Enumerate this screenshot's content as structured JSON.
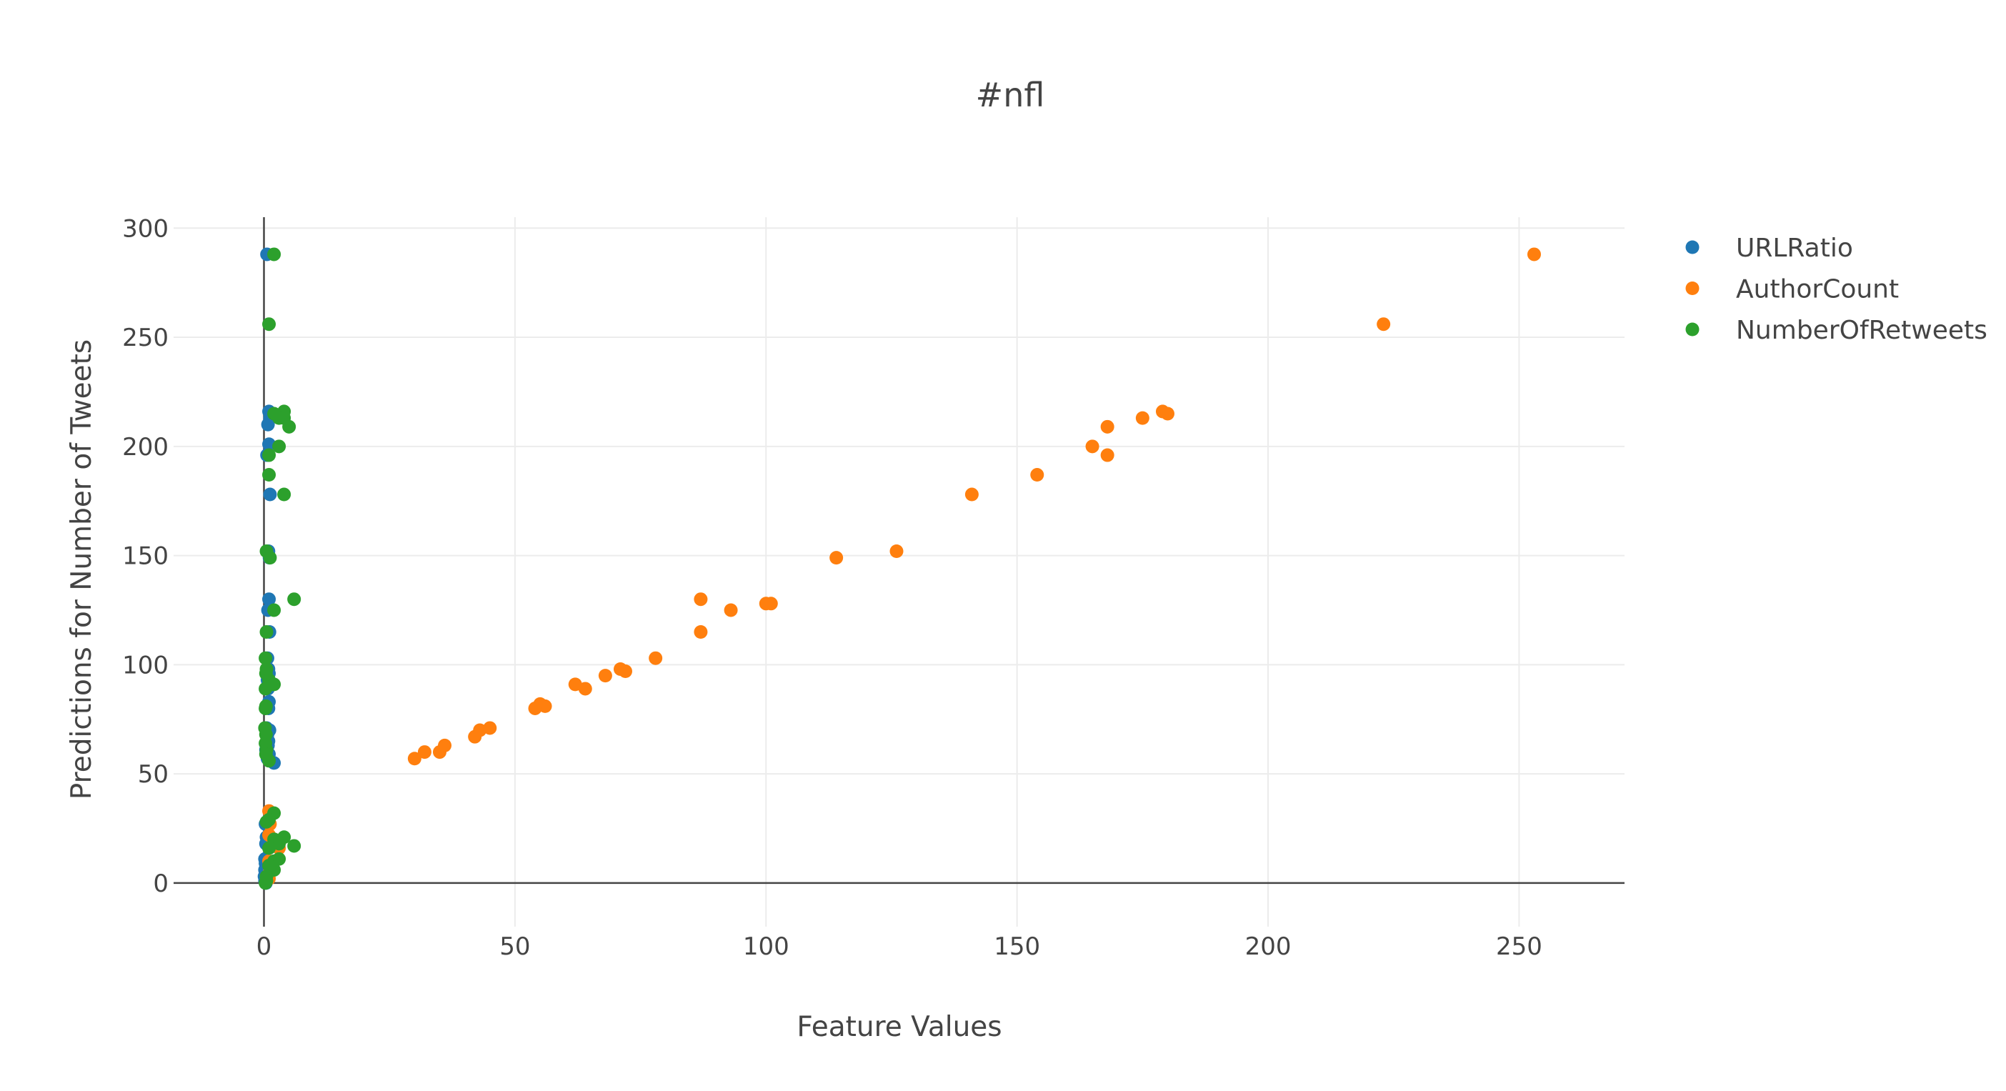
{
  "chart_data": {
    "type": "scatter",
    "title": "#nfl",
    "xlabel": "Feature Values",
    "ylabel": "Predictions for Number of Tweets",
    "xlim": [
      -18,
      271
    ],
    "ylim": [
      -20,
      305
    ],
    "x_ticks": [
      0,
      50,
      100,
      150,
      200,
      250
    ],
    "y_ticks": [
      0,
      50,
      100,
      150,
      200,
      250,
      300
    ],
    "x_tick_labels": [
      "0",
      "50",
      "100",
      "150",
      "200",
      "250"
    ],
    "y_tick_labels": [
      "0",
      "50",
      "100",
      "150",
      "200",
      "250",
      "300"
    ],
    "grid": true,
    "legend_position": "top-right",
    "series": [
      {
        "name": "URLRatio",
        "color": "#1f77b4",
        "points": [
          [
            0.6,
            288
          ],
          [
            1.0,
            216
          ],
          [
            1.2,
            213
          ],
          [
            0.8,
            210
          ],
          [
            1.0,
            201
          ],
          [
            0.6,
            196
          ],
          [
            1.2,
            178
          ],
          [
            0.9,
            152
          ],
          [
            1.1,
            149
          ],
          [
            1.0,
            130
          ],
          [
            0.8,
            125
          ],
          [
            1.1,
            115
          ],
          [
            0.7,
            103
          ],
          [
            0.9,
            98
          ],
          [
            1.0,
            96
          ],
          [
            0.7,
            93
          ],
          [
            1.1,
            91
          ],
          [
            0.8,
            89
          ],
          [
            1.0,
            83
          ],
          [
            0.6,
            81
          ],
          [
            0.9,
            80
          ],
          [
            0.5,
            71
          ],
          [
            1.1,
            70
          ],
          [
            0.7,
            68
          ],
          [
            0.9,
            65
          ],
          [
            0.8,
            63
          ],
          [
            0.4,
            61
          ],
          [
            1.0,
            59
          ],
          [
            0.7,
            57
          ],
          [
            2.0,
            55
          ],
          [
            0.3,
            27
          ],
          [
            0.5,
            21
          ],
          [
            0.7,
            20
          ],
          [
            0.4,
            18
          ],
          [
            0.2,
            11
          ],
          [
            0.3,
            9
          ],
          [
            0.2,
            6
          ],
          [
            0.1,
            3
          ],
          [
            0.2,
            1
          ],
          [
            0.4,
            0
          ]
        ]
      },
      {
        "name": "AuthorCount",
        "color": "#ff7f0e",
        "points": [
          [
            253,
            288
          ],
          [
            223,
            256
          ],
          [
            180,
            215
          ],
          [
            179,
            216
          ],
          [
            175,
            213
          ],
          [
            168,
            209
          ],
          [
            165,
            200
          ],
          [
            168,
            196
          ],
          [
            154,
            187
          ],
          [
            141,
            178
          ],
          [
            126,
            152
          ],
          [
            114,
            149
          ],
          [
            87,
            130
          ],
          [
            93,
            125
          ],
          [
            100,
            128
          ],
          [
            101,
            128
          ],
          [
            87,
            115
          ],
          [
            78,
            103
          ],
          [
            71,
            98
          ],
          [
            72,
            97
          ],
          [
            68,
            95
          ],
          [
            62,
            91
          ],
          [
            64,
            89
          ],
          [
            55,
            82
          ],
          [
            56,
            81
          ],
          [
            54,
            80
          ],
          [
            45,
            71
          ],
          [
            43,
            70
          ],
          [
            42,
            67
          ],
          [
            36,
            63
          ],
          [
            35,
            60
          ],
          [
            32,
            60
          ],
          [
            30,
            57
          ],
          [
            1.0,
            33
          ],
          [
            1.2,
            27
          ],
          [
            1.0,
            22
          ],
          [
            2.0,
            20
          ],
          [
            1.6,
            17
          ],
          [
            3.0,
            16
          ],
          [
            1.0,
            10
          ],
          [
            2.0,
            10
          ],
          [
            1.2,
            6
          ],
          [
            1.0,
            2
          ],
          [
            0.5,
            1
          ]
        ]
      },
      {
        "name": "NumberOfRetweets",
        "color": "#2ca02c",
        "points": [
          [
            2.0,
            288
          ],
          [
            1.0,
            256
          ],
          [
            4.0,
            216
          ],
          [
            2.0,
            215
          ],
          [
            3.0,
            213
          ],
          [
            4.0,
            213
          ],
          [
            5.0,
            209
          ],
          [
            3.0,
            200
          ],
          [
            1.0,
            196
          ],
          [
            1.0,
            187
          ],
          [
            4.0,
            178
          ],
          [
            0.5,
            152
          ],
          [
            1.2,
            149
          ],
          [
            6.0,
            130
          ],
          [
            2.0,
            125
          ],
          [
            0.5,
            115
          ],
          [
            0.3,
            103
          ],
          [
            0.5,
            98
          ],
          [
            0.4,
            96
          ],
          [
            1.0,
            93
          ],
          [
            2.0,
            91
          ],
          [
            0.3,
            89
          ],
          [
            0.4,
            81
          ],
          [
            0.3,
            80
          ],
          [
            0.2,
            71
          ],
          [
            0.4,
            68
          ],
          [
            0.3,
            64
          ],
          [
            0.5,
            61
          ],
          [
            0.4,
            59
          ],
          [
            1.0,
            56
          ],
          [
            2.0,
            32
          ],
          [
            0.5,
            28
          ],
          [
            1.0,
            29
          ],
          [
            4.0,
            21
          ],
          [
            2.0,
            20
          ],
          [
            3.0,
            18
          ],
          [
            6.0,
            17
          ],
          [
            1.0,
            16
          ],
          [
            3.0,
            11
          ],
          [
            2.0,
            10
          ],
          [
            1.0,
            8
          ],
          [
            2.0,
            6
          ],
          [
            0.5,
            3
          ],
          [
            0.5,
            1
          ],
          [
            0.3,
            0
          ]
        ]
      }
    ]
  }
}
